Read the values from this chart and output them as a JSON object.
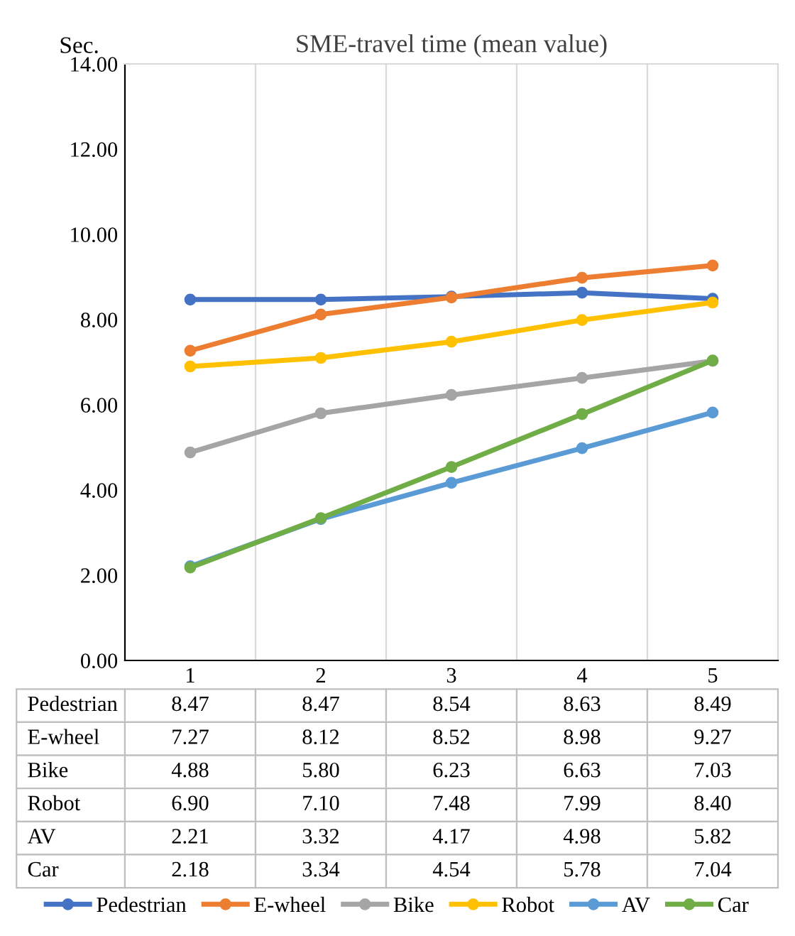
{
  "chart_data": {
    "type": "line",
    "title": "SME-travel time (mean value)",
    "ylabel": "Sec.",
    "categories": [
      "1",
      "2",
      "3",
      "4",
      "5"
    ],
    "series": [
      {
        "name": "Pedestrian",
        "color": "#4472c4",
        "values": [
          8.47,
          8.47,
          8.54,
          8.63,
          8.49
        ],
        "value_labels": [
          "8.47",
          "8.47",
          "8.54",
          "8.63",
          "8.49"
        ]
      },
      {
        "name": "E-wheel",
        "color": "#ed7d31",
        "values": [
          7.27,
          8.12,
          8.52,
          8.98,
          9.27
        ],
        "value_labels": [
          "7.27",
          "8.12",
          "8.52",
          "8.98",
          "9.27"
        ]
      },
      {
        "name": "Bike",
        "color": "#a5a5a5",
        "values": [
          4.88,
          5.8,
          6.23,
          6.63,
          7.03
        ],
        "value_labels": [
          "4.88",
          "5.80",
          "6.23",
          "6.63",
          "7.03"
        ]
      },
      {
        "name": "Robot",
        "color": "#ffc000",
        "values": [
          6.9,
          7.1,
          7.48,
          7.99,
          8.4
        ],
        "value_labels": [
          "6.90",
          "7.10",
          "7.48",
          "7.99",
          "8.40"
        ]
      },
      {
        "name": "AV",
        "color": "#5b9bd5",
        "values": [
          2.21,
          3.32,
          4.17,
          4.98,
          5.82
        ],
        "value_labels": [
          "2.21",
          "3.32",
          "4.17",
          "4.98",
          "5.82"
        ]
      },
      {
        "name": "Car",
        "color": "#70ad47",
        "values": [
          2.18,
          3.34,
          4.54,
          5.78,
          7.04
        ],
        "value_labels": [
          "2.18",
          "3.34",
          "4.54",
          "5.78",
          "7.04"
        ]
      }
    ],
    "ylim": [
      0,
      14
    ],
    "yticks": [
      {
        "value": 0,
        "label": "0.00"
      },
      {
        "value": 2,
        "label": "2.00"
      },
      {
        "value": 4,
        "label": "4.00"
      },
      {
        "value": 6,
        "label": "6.00"
      },
      {
        "value": 8,
        "label": "8.00"
      },
      {
        "value": 10,
        "label": "10.00"
      },
      {
        "value": 12,
        "label": "12.00"
      },
      {
        "value": 14,
        "label": "14.00"
      }
    ],
    "legend": "bottom",
    "marker": "circle",
    "line_style": "solid",
    "grid": false
  }
}
